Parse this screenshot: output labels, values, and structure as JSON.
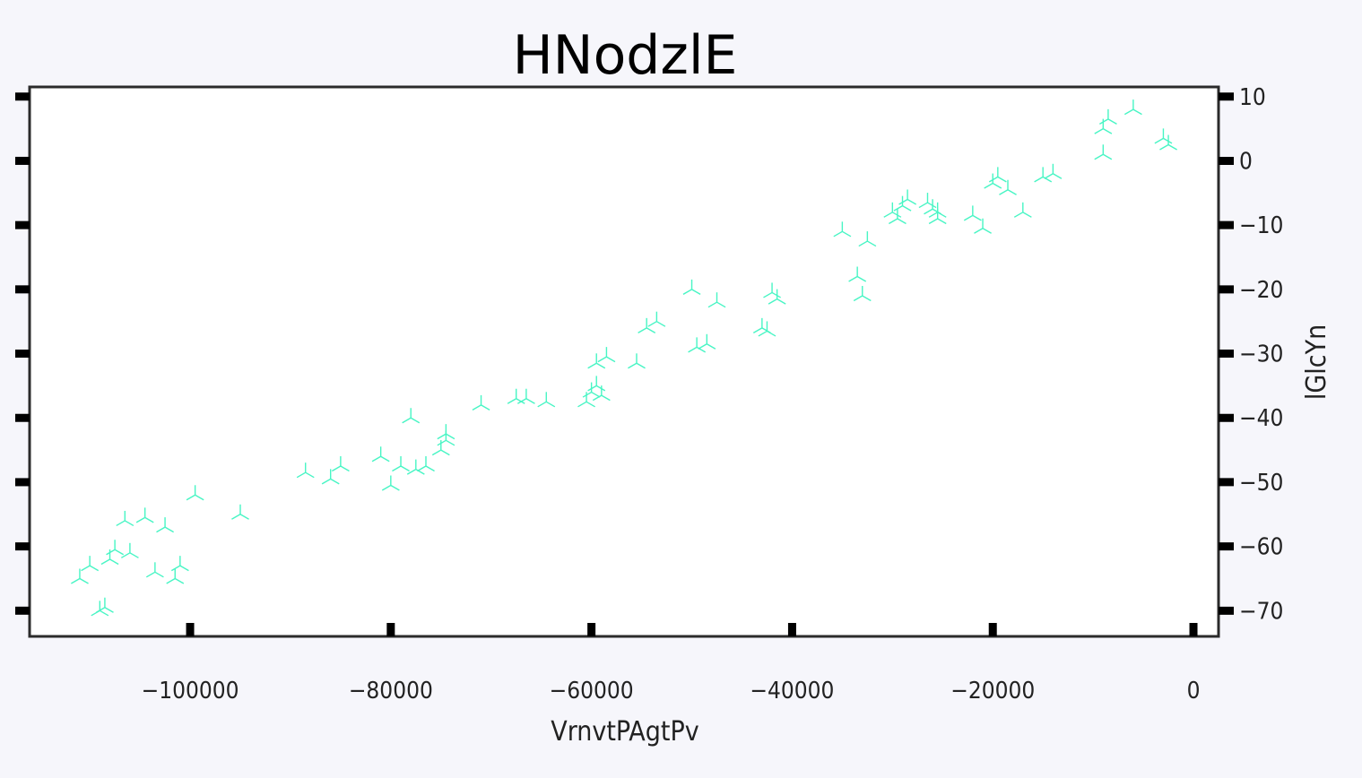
{
  "chart_data": {
    "type": "scatter",
    "title": "HNodzlE",
    "xlabel": "VrnvtPAgtPv",
    "ylabel": "lGlcYn",
    "xlim": [
      -116000,
      2500
    ],
    "ylim": [
      -74,
      11.5
    ],
    "x_ticks": [
      -100000,
      -80000,
      -60000,
      -40000,
      -20000,
      0
    ],
    "x_tick_labels": [
      "−100000",
      "−80000",
      "−60000",
      "−40000",
      "−20000",
      "0"
    ],
    "y_ticks": [
      10,
      0,
      -10,
      -20,
      -30,
      -40,
      -50,
      -60,
      -70
    ],
    "y_tick_labels": [
      "10",
      "0",
      "−10",
      "−20",
      "−30",
      "−40",
      "−50",
      "−60",
      "−70"
    ],
    "grid": false,
    "marker": "tri_down",
    "marker_color": "#47f5c4",
    "series": [
      {
        "points": [
          [
            -111000,
            -65
          ],
          [
            -110000,
            -63
          ],
          [
            -109000,
            -70
          ],
          [
            -108500,
            -69.5
          ],
          [
            -108000,
            -62
          ],
          [
            -107500,
            -60.5
          ],
          [
            -106000,
            -61
          ],
          [
            -106500,
            -56
          ],
          [
            -104500,
            -55.5
          ],
          [
            -103500,
            -64
          ],
          [
            -102500,
            -57
          ],
          [
            -101500,
            -65
          ],
          [
            -101000,
            -63
          ],
          [
            -99500,
            -52
          ],
          [
            -95000,
            -55
          ],
          [
            -88500,
            -48.5
          ],
          [
            -86000,
            -49.5
          ],
          [
            -85000,
            -47.5
          ],
          [
            -81000,
            -46
          ],
          [
            -80000,
            -50.5
          ],
          [
            -79000,
            -47.5
          ],
          [
            -78000,
            -40
          ],
          [
            -77500,
            -48
          ],
          [
            -76500,
            -47.5
          ],
          [
            -75000,
            -45
          ],
          [
            -74500,
            -43.5
          ],
          [
            -74500,
            -42.5
          ],
          [
            -71000,
            -38
          ],
          [
            -67500,
            -37
          ],
          [
            -66500,
            -37
          ],
          [
            -64500,
            -37.5
          ],
          [
            -60500,
            -37.5
          ],
          [
            -60000,
            -36
          ],
          [
            -59500,
            -35
          ],
          [
            -59500,
            -31.5
          ],
          [
            -59000,
            -36.5
          ],
          [
            -58500,
            -30.5
          ],
          [
            -55500,
            -31.5
          ],
          [
            -54500,
            -26
          ],
          [
            -53500,
            -25
          ],
          [
            -50000,
            -20
          ],
          [
            -49500,
            -29
          ],
          [
            -48500,
            -28.5
          ],
          [
            -47500,
            -22
          ],
          [
            -43000,
            -26
          ],
          [
            -42500,
            -26.5
          ],
          [
            -42000,
            -20.5
          ],
          [
            -41500,
            -21.5
          ],
          [
            -35000,
            -11
          ],
          [
            -33500,
            -18
          ],
          [
            -33000,
            -21
          ],
          [
            -32500,
            -12.5
          ],
          [
            -30000,
            -8
          ],
          [
            -29500,
            -9
          ],
          [
            -29000,
            -7
          ],
          [
            -28500,
            -6
          ],
          [
            -26500,
            -6.5
          ],
          [
            -26000,
            -7.5
          ],
          [
            -25500,
            -8
          ],
          [
            -25500,
            -9
          ],
          [
            -22000,
            -8.5
          ],
          [
            -21000,
            -10.5
          ],
          [
            -20000,
            -3.5
          ],
          [
            -19500,
            -2.5
          ],
          [
            -18500,
            -4.5
          ],
          [
            -17000,
            -8
          ],
          [
            -15000,
            -2.5
          ],
          [
            -14000,
            -2
          ],
          [
            -9000,
            5
          ],
          [
            -8500,
            6.5
          ],
          [
            -9000,
            1
          ],
          [
            -6000,
            8
          ],
          [
            -3000,
            3.5
          ],
          [
            -2500,
            2.5
          ]
        ]
      }
    ]
  }
}
